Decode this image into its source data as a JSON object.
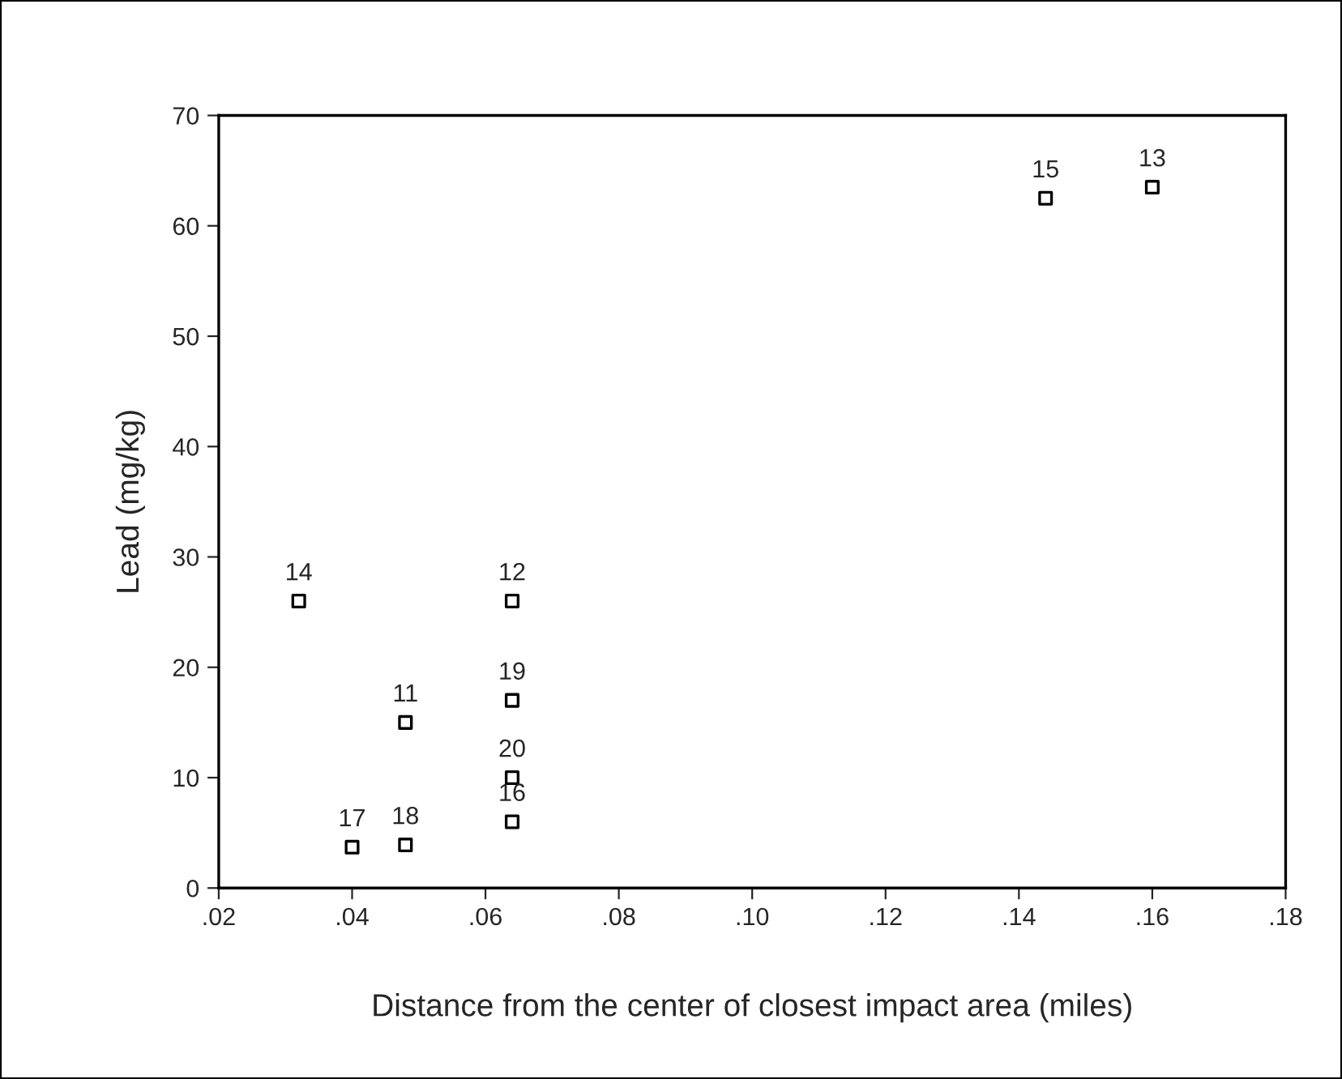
{
  "chart_data": {
    "type": "scatter",
    "xlabel": "Distance from the center of closest impact area (miles)",
    "ylabel": "Lead (mg/kg)",
    "x": [
      0.048,
      0.064,
      0.16,
      0.032,
      0.144,
      0.064,
      0.04,
      0.048,
      0.064,
      0.064
    ],
    "series": [
      {
        "color": "#000000",
        "values": [
          15,
          26,
          63.5,
          26,
          62.5,
          6,
          3.7,
          3.9,
          17,
          10
        ]
      }
    ],
    "marker": "square",
    "xlim": [
      0.02,
      0.18
    ],
    "xticks": [
      {
        "value": 0.02,
        "label": ".02"
      },
      {
        "value": 0.04,
        "label": ".04"
      },
      {
        "value": 0.06,
        "label": ".06"
      },
      {
        "value": 0.08,
        "label": ".08"
      },
      {
        "value": 0.1,
        "label": ".10"
      },
      {
        "value": 0.12,
        "label": ".12"
      },
      {
        "value": 0.14,
        "label": ".14"
      },
      {
        "value": 0.16,
        "label": ".16"
      },
      {
        "value": 0.18,
        "label": ".18"
      }
    ],
    "ylim": [
      0,
      70
    ],
    "yticks": [
      0,
      10,
      20,
      30,
      40,
      50,
      60,
      70
    ],
    "grid": false,
    "legend": false,
    "annotations": [
      {
        "text": "11",
        "x": 0.048,
        "y": 15
      },
      {
        "text": "12",
        "x": 0.064,
        "y": 26
      },
      {
        "text": "13",
        "x": 0.16,
        "y": 63.5
      },
      {
        "text": "14",
        "x": 0.032,
        "y": 26
      },
      {
        "text": "15",
        "x": 0.144,
        "y": 62.5
      },
      {
        "text": "16",
        "x": 0.064,
        "y": 6
      },
      {
        "text": "17",
        "x": 0.04,
        "y": 3.7
      },
      {
        "text": "18",
        "x": 0.048,
        "y": 3.9
      },
      {
        "text": "19",
        "x": 0.064,
        "y": 17
      },
      {
        "text": "20",
        "x": 0.064,
        "y": 10
      }
    ]
  }
}
